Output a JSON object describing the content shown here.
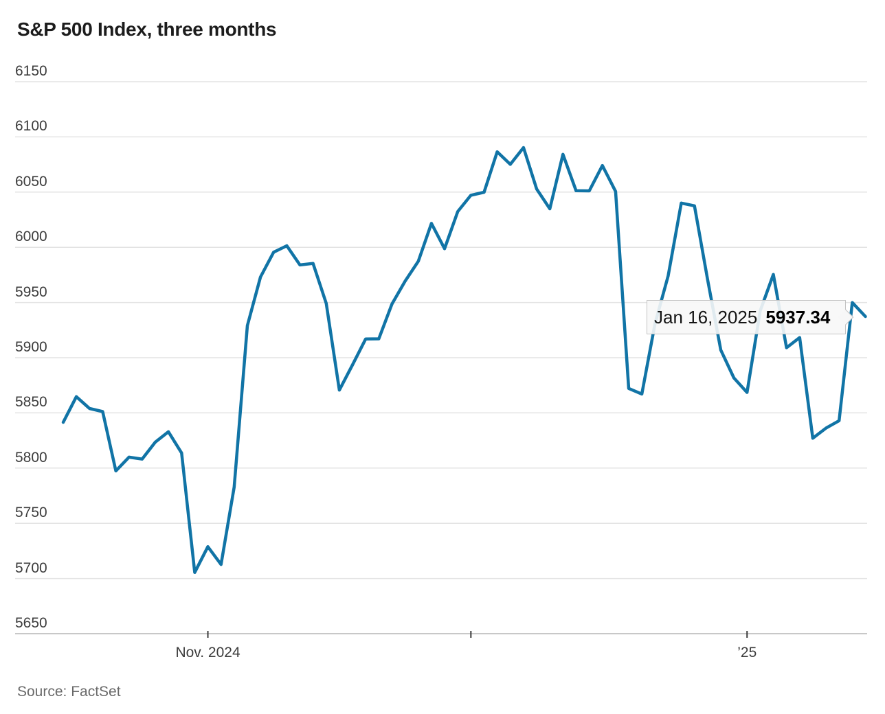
{
  "chart_data": {
    "type": "line",
    "title": "S&P 500 Index, three months",
    "source": "Source: FactSet",
    "ylim": [
      5650,
      6150
    ],
    "y_ticks": [
      6150,
      6100,
      6050,
      6000,
      5950,
      5900,
      5850,
      5800,
      5750,
      5700,
      5650
    ],
    "x_ticks": [
      {
        "index": 11,
        "label": "Nov. 2024"
      },
      {
        "index": 31,
        "label": ""
      },
      {
        "index": 52,
        "label": "’25"
      }
    ],
    "grid": true,
    "legend_position": "none",
    "line_color": "#1174a6",
    "series": [
      {
        "name": "S&P 500 Index",
        "x": [
          "Oct 17",
          "Oct 18",
          "Oct 21",
          "Oct 22",
          "Oct 23",
          "Oct 24",
          "Oct 25",
          "Oct 28",
          "Oct 29",
          "Oct 30",
          "Oct 31",
          "Nov 1",
          "Nov 4",
          "Nov 5",
          "Nov 6",
          "Nov 7",
          "Nov 8",
          "Nov 11",
          "Nov 12",
          "Nov 13",
          "Nov 14",
          "Nov 15",
          "Nov 18",
          "Nov 19",
          "Nov 20",
          "Nov 21",
          "Nov 22",
          "Nov 25",
          "Nov 26",
          "Nov 27",
          "Nov 29",
          "Dec 2",
          "Dec 3",
          "Dec 4",
          "Dec 5",
          "Dec 6",
          "Dec 9",
          "Dec 10",
          "Dec 11",
          "Dec 12",
          "Dec 13",
          "Dec 16",
          "Dec 17",
          "Dec 18",
          "Dec 19",
          "Dec 20",
          "Dec 23",
          "Dec 24",
          "Dec 26",
          "Dec 27",
          "Dec 30",
          "Dec 31",
          "Jan 2",
          "Jan 3",
          "Jan 6",
          "Jan 7",
          "Jan 8",
          "Jan 10",
          "Jan 13",
          "Jan 14",
          "Jan 15",
          "Jan 16"
        ],
        "values": [
          5841.47,
          5864.67,
          5853.98,
          5851.2,
          5797.42,
          5809.86,
          5808.12,
          5823.52,
          5832.92,
          5813.67,
          5705.45,
          5728.8,
          5712.69,
          5782.76,
          5929.04,
          5973.1,
          5995.54,
          6001.35,
          5983.99,
          5985.38,
          5949.17,
          5870.62,
          5893.62,
          5916.98,
          5917.11,
          5948.71,
          5969.34,
          5987.37,
          6021.63,
          5998.74,
          6032.38,
          6047.15,
          6049.88,
          6086.49,
          6075.11,
          6090.27,
          6052.85,
          6034.91,
          6084.19,
          6051.25,
          6051.09,
          6074.08,
          6050.61,
          5872.16,
          5867.08,
          5930.85,
          5974.07,
          6040.04,
          6037.59,
          5970.84,
          5906.94,
          5881.63,
          5868.55,
          5942.47,
          5975.38,
          5909.03,
          5918.25,
          5827.04,
          5836.22,
          5842.91,
          5949.91,
          5937.34
        ]
      }
    ],
    "tooltip": {
      "date_label": "Jan 16, 2025",
      "value_label": "5937.34"
    }
  }
}
